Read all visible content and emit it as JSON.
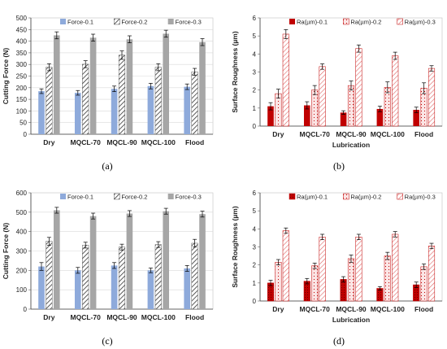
{
  "figure": {
    "captions": [
      "(a)",
      "(b)",
      "(c)",
      "(d)"
    ]
  },
  "chart_data": [
    {
      "type": "bar",
      "panel": "a",
      "categories": [
        "Dry",
        "MQCL-70",
        "MQCL-90",
        "MQCL-100",
        "Flood"
      ],
      "ylabel": "Cutting Force (N)",
      "xlabel": "",
      "ylim": [
        0,
        500
      ],
      "yticks": [
        0,
        50,
        100,
        150,
        200,
        250,
        300,
        350,
        400,
        450,
        500
      ],
      "grid": true,
      "legend": "top",
      "series": [
        {
          "name": "Force-0.1",
          "values": [
            185,
            178,
            195,
            207,
            204
          ],
          "errors": [
            10,
            10,
            12,
            12,
            12
          ],
          "color": "#8eaadb",
          "pattern": "solid"
        },
        {
          "name": "Force-0.2",
          "values": [
            288,
            301,
            340,
            288,
            268
          ],
          "errors": [
            15,
            15,
            18,
            15,
            15
          ],
          "color": "#333333",
          "pattern": "hatch"
        },
        {
          "name": "Force-0.3",
          "values": [
            425,
            415,
            408,
            432,
            396
          ],
          "errors": [
            15,
            15,
            15,
            15,
            15
          ],
          "color": "#a6a6a6",
          "pattern": "solid"
        }
      ]
    },
    {
      "type": "bar",
      "panel": "b",
      "categories": [
        "Dry",
        "MQCL-70",
        "MQCL-90",
        "MQCL-100",
        "Flood"
      ],
      "ylabel": "Surface Roughness (µm)",
      "xlabel": "Lubrication",
      "ylim": [
        0,
        6
      ],
      "yticks": [
        0,
        1,
        2,
        3,
        4,
        5,
        6
      ],
      "grid": false,
      "legend": "top",
      "series": [
        {
          "name": "Ra(µm)-0.1",
          "values": [
            1.1,
            1.15,
            0.75,
            0.95,
            0.9
          ],
          "errors": [
            0.2,
            0.2,
            0.1,
            0.15,
            0.15
          ],
          "color": "#c00000",
          "pattern": "solid"
        },
        {
          "name": "Ra(µm)-0.2",
          "values": [
            1.8,
            2.0,
            2.25,
            2.15,
            2.1
          ],
          "errors": [
            0.25,
            0.25,
            0.25,
            0.3,
            0.3
          ],
          "color": "#c00000",
          "pattern": "light"
        },
        {
          "name": "Ra(µm)-0.3",
          "values": [
            5.1,
            3.3,
            4.3,
            3.9,
            3.2
          ],
          "errors": [
            0.25,
            0.15,
            0.2,
            0.2,
            0.15
          ],
          "color": "#c00000",
          "pattern": "dots"
        }
      ]
    },
    {
      "type": "bar",
      "panel": "c",
      "categories": [
        "Dry",
        "MQCL-70",
        "MQCL-90",
        "MQCL-100",
        "Flood"
      ],
      "ylabel": "Cutting Force (N)",
      "xlabel": "",
      "ylim": [
        0,
        600
      ],
      "yticks": [
        0,
        100,
        200,
        300,
        400,
        500,
        600
      ],
      "grid": true,
      "legend": "top",
      "series": [
        {
          "name": "Force-0.1",
          "values": [
            220,
            200,
            225,
            200,
            210
          ],
          "errors": [
            20,
            15,
            15,
            12,
            15
          ],
          "color": "#8eaadb",
          "pattern": "solid"
        },
        {
          "name": "Force-0.2",
          "values": [
            350,
            330,
            320,
            333,
            340
          ],
          "errors": [
            20,
            15,
            15,
            15,
            20
          ],
          "color": "#333333",
          "pattern": "hatch"
        },
        {
          "name": "Force-0.3",
          "values": [
            510,
            480,
            493,
            505,
            490
          ],
          "errors": [
            15,
            15,
            15,
            15,
            15
          ],
          "color": "#a6a6a6",
          "pattern": "solid"
        }
      ]
    },
    {
      "type": "bar",
      "panel": "d",
      "categories": [
        "Dry",
        "MQCL-70",
        "MQCL-90",
        "MQCL-100",
        "Flood"
      ],
      "ylabel": "Surface Roughness (µm)",
      "xlabel": "Lubrication",
      "ylim": [
        0,
        6
      ],
      "yticks": [
        0,
        1,
        2,
        3,
        4,
        5,
        6
      ],
      "grid": false,
      "legend": "top",
      "series": [
        {
          "name": "Ra(µm)-0.1",
          "values": [
            1.0,
            1.1,
            1.2,
            0.7,
            0.9
          ],
          "errors": [
            0.15,
            0.15,
            0.15,
            0.1,
            0.15
          ],
          "color": "#c00000",
          "pattern": "dark"
        },
        {
          "name": "Ra(µm)-0.2",
          "values": [
            2.15,
            1.95,
            2.35,
            2.5,
            1.9
          ],
          "errors": [
            0.15,
            0.15,
            0.2,
            0.2,
            0.15
          ],
          "color": "#c00000",
          "pattern": "light"
        },
        {
          "name": "Ra(µm)-0.3",
          "values": [
            3.9,
            3.55,
            3.55,
            3.7,
            3.05
          ],
          "errors": [
            0.15,
            0.15,
            0.15,
            0.15,
            0.15
          ],
          "color": "#c00000",
          "pattern": "dots"
        }
      ]
    }
  ]
}
